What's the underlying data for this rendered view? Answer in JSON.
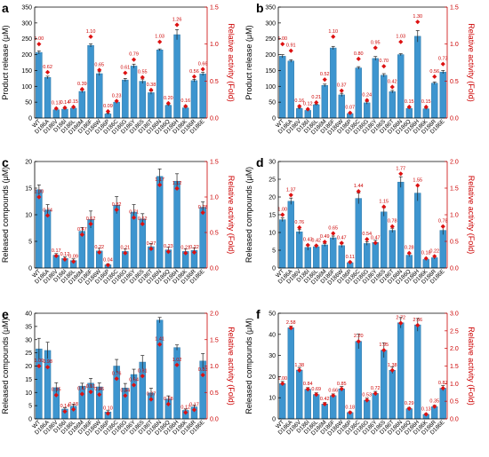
{
  "categories": [
    "WT",
    "D186A",
    "D186V",
    "D186I",
    "D186L",
    "D186M",
    "D186F",
    "D186W",
    "D186P",
    "D186C",
    "D186G",
    "D186Y",
    "D186S",
    "D186T",
    "D186N",
    "D186Q",
    "D186H",
    "D186K",
    "D186R",
    "D186E"
  ],
  "colors": {
    "bar": "#3d95cf",
    "activity": "#dd1111",
    "right_axis": "#cc0000"
  },
  "chart_data": [
    {
      "panel": "a",
      "type": "bar",
      "ylabel": "Product release (μM)",
      "ylim": [
        0,
        350
      ],
      "yticks": [
        0,
        50,
        100,
        150,
        200,
        250,
        300,
        350
      ],
      "y2label": "Relative activity (Fold)",
      "y2lim": [
        0,
        1.5
      ],
      "y2ticks": [
        0.0,
        0.5,
        1.0,
        1.5
      ],
      "values": [
        207,
        128,
        26,
        28,
        31,
        84,
        229,
        140,
        13,
        50,
        120,
        164,
        116,
        80,
        215,
        40,
        263,
        32,
        118,
        139
      ],
      "errors": [
        5,
        4,
        2,
        2,
        2,
        4,
        5,
        6,
        2,
        4,
        5,
        6,
        7,
        5,
        3,
        2,
        16,
        2,
        4,
        5
      ],
      "activity": [
        1.0,
        0.62,
        0.13,
        0.14,
        0.15,
        0.39,
        1.1,
        0.65,
        0.09,
        0.23,
        0.61,
        0.79,
        0.55,
        0.38,
        1.03,
        0.2,
        1.26,
        0.16,
        0.56,
        0.66
      ],
      "activity_labels": [
        "1.00",
        "0.62",
        "0.13",
        "0.14",
        "0.15",
        "0.39",
        "1.10",
        "0.65",
        "0.09",
        "0.23",
        "0.61",
        "0.79",
        "0.55",
        "0.38",
        "1.03",
        "0.20",
        "1.26",
        "0.16",
        "0.56",
        "0.66"
      ]
    },
    {
      "panel": "b",
      "type": "bar",
      "ylabel": "Product release (μM)",
      "ylim": [
        0,
        350
      ],
      "yticks": [
        0,
        50,
        100,
        150,
        200,
        250,
        300,
        350
      ],
      "y2label": "Relative activity (Fold)",
      "y2lim": [
        0,
        1.5
      ],
      "y2ticks": [
        0.0,
        0.5,
        1.0,
        1.5
      ],
      "values": [
        195,
        180,
        30,
        24,
        42,
        103,
        221,
        73,
        14,
        158,
        48,
        188,
        135,
        83,
        200,
        30,
        258,
        29,
        110,
        145
      ],
      "errors": [
        5,
        4,
        2,
        2,
        2,
        4,
        5,
        5,
        2,
        4,
        4,
        6,
        5,
        4,
        3,
        2,
        18,
        2,
        4,
        5
      ],
      "activity": [
        1.0,
        0.91,
        0.16,
        0.12,
        0.21,
        0.52,
        1.1,
        0.37,
        0.07,
        0.8,
        0.24,
        0.95,
        0.7,
        0.42,
        1.03,
        0.15,
        1.3,
        0.15,
        0.56,
        0.73
      ],
      "activity_labels": [
        "1.00",
        "0.91",
        "0.16",
        "0.12",
        "0.21",
        "0.52",
        "1.10",
        "0.37",
        "0.07",
        "0.80",
        "0.24",
        "0.95",
        "0.70",
        "0.42",
        "1.03",
        "0.15",
        "1.30",
        "0.15",
        "0.56",
        "0.73"
      ]
    },
    {
      "panel": "c",
      "type": "bar",
      "ylabel": "Released compounds (μM)",
      "ylim": [
        0,
        20
      ],
      "yticks": [
        0,
        5,
        10,
        15,
        20
      ],
      "y2label": "Relative activity (Fold)",
      "y2lim": [
        0,
        1.5
      ],
      "y2ticks": [
        0.0,
        0.5,
        1.0,
        1.5
      ],
      "values": [
        14.7,
        10.9,
        2.4,
        1.8,
        1.4,
        6.9,
        9.1,
        3.2,
        0.6,
        11.8,
        3.1,
        10.5,
        9.2,
        4.0,
        17.2,
        3.4,
        16.3,
        3.1,
        3.3,
        11.4
      ],
      "errors": [
        0.9,
        1.0,
        0.3,
        0.3,
        0.3,
        0.7,
        1.6,
        0.5,
        0.2,
        1.6,
        0.5,
        1.4,
        1.0,
        0.6,
        1.4,
        0.5,
        1.4,
        0.5,
        0.5,
        1.0
      ],
      "activity": [
        1.0,
        0.74,
        0.17,
        0.12,
        0.09,
        0.47,
        0.62,
        0.22,
        0.04,
        0.82,
        0.21,
        0.71,
        0.62,
        0.27,
        1.17,
        0.23,
        1.12,
        0.21,
        0.22,
        0.78
      ],
      "activity_labels": [
        "1.00",
        "0.74",
        "0.17",
        "0.12",
        "0.09",
        "0.47",
        "0.62",
        "0.22",
        "0.04",
        "0.82",
        "0.21",
        "0.71",
        "0.62",
        "0.27",
        "1.17",
        "0.23",
        "1.12",
        "0.21",
        "0.22",
        "0.78"
      ]
    },
    {
      "panel": "d",
      "type": "bar",
      "ylabel": "Released compounds (μM)",
      "ylim": [
        0,
        30
      ],
      "yticks": [
        0,
        5,
        10,
        15,
        20,
        25,
        30
      ],
      "y2label": "Relative activity (Fold)",
      "y2lim": [
        0,
        2.0
      ],
      "y2ticks": [
        0.0,
        0.5,
        1.0,
        1.5,
        2.0
      ],
      "values": [
        13.6,
        18.8,
        10.2,
        5.8,
        6.0,
        6.5,
        8.5,
        6.3,
        1.5,
        19.6,
        6.9,
        7.2,
        15.8,
        10.6,
        24.2,
        3.6,
        21.1,
        2.4,
        2.9,
        10.6
      ],
      "errors": [
        0.5,
        0.9,
        0.6,
        0.8,
        0.4,
        0.4,
        0.5,
        0.5,
        0.3,
        1.5,
        0.5,
        0.6,
        1.2,
        0.6,
        1.5,
        0.4,
        2.2,
        0.3,
        0.4,
        1.2
      ],
      "activity": [
        1.0,
        1.37,
        0.76,
        0.43,
        0.42,
        0.49,
        0.65,
        0.47,
        0.11,
        1.44,
        0.54,
        0.47,
        1.15,
        0.78,
        1.77,
        0.28,
        1.55,
        0.18,
        0.22,
        0.78
      ],
      "activity_labels": [
        "1.00",
        "1.37",
        "0.76",
        "0.43",
        "0.42",
        "0.49",
        "0.65",
        "0.47",
        "0.11",
        "1.44",
        "0.54",
        "0.47",
        "1.15",
        "0.78",
        "1.77",
        "0.28",
        "1.55",
        "0.18",
        "0.22",
        "0.78"
      ]
    },
    {
      "panel": "e",
      "type": "bar",
      "ylabel": "Released compounds (μM)",
      "ylim": [
        0,
        40
      ],
      "yticks": [
        0,
        5,
        10,
        15,
        20,
        25,
        30,
        35,
        40
      ],
      "y2label": "Relative activity (Fold)",
      "y2lim": [
        0,
        2.0
      ],
      "y2ticks": [
        0.0,
        0.5,
        1.0,
        1.5,
        2.0
      ],
      "values": [
        26.5,
        25.9,
        11.8,
        3.7,
        4.8,
        12.4,
        13.5,
        12.1,
        2.6,
        20.0,
        11.7,
        16.8,
        21.5,
        9.8,
        37.4,
        7.5,
        27.0,
        3.2,
        4.5,
        21.9
      ],
      "errors": [
        4.0,
        3.1,
        1.9,
        0.5,
        0.8,
        1.1,
        1.8,
        1.5,
        0.5,
        2.5,
        1.7,
        2.0,
        2.5,
        1.8,
        1.0,
        1.2,
        1.0,
        0.5,
        0.7,
        2.8
      ],
      "activity": [
        1.0,
        0.98,
        0.45,
        0.14,
        0.18,
        0.47,
        0.51,
        0.46,
        0.1,
        0.76,
        0.44,
        0.64,
        0.81,
        0.37,
        1.41,
        0.28,
        1.02,
        0.12,
        0.17,
        0.83
      ],
      "activity_labels": [
        "1.00",
        "0.98",
        "0.45",
        "0.14",
        "0.18",
        "0.47",
        "0.51",
        "0.46",
        "0.10",
        "0.76",
        "0.44",
        "0.64",
        "0.81",
        "0.37",
        "1.41",
        "0.28",
        "1.02",
        "0.12",
        "0.17",
        "0.83"
      ]
    },
    {
      "panel": "f",
      "type": "bar",
      "ylabel": "Released compounds (μM)",
      "ylim": [
        0,
        50
      ],
      "yticks": [
        0,
        10,
        20,
        30,
        40,
        50
      ],
      "y2label": "Relative activity (Fold)",
      "y2lim": [
        0,
        3.0
      ],
      "y2ticks": [
        0.0,
        0.5,
        1.0,
        1.5,
        2.0,
        2.5,
        3.0
      ],
      "values": [
        16.7,
        43.1,
        23.1,
        14.0,
        11.5,
        7.0,
        11.0,
        14.2,
        3.0,
        36.7,
        8.8,
        12.0,
        32.5,
        23.0,
        45.5,
        4.8,
        44.5,
        2.1,
        5.8,
        14.5
      ],
      "errors": [
        1.0,
        0.8,
        1.2,
        0.8,
        0.8,
        0.7,
        0.8,
        1.1,
        0.4,
        3.5,
        1.0,
        1.0,
        3.5,
        1.5,
        2.5,
        0.6,
        3.0,
        0.4,
        0.6,
        1.2
      ],
      "activity": [
        1.0,
        2.58,
        1.38,
        0.84,
        0.69,
        0.42,
        0.66,
        0.85,
        0.18,
        2.2,
        0.53,
        0.72,
        1.95,
        1.38,
        2.72,
        0.29,
        2.66,
        0.13,
        0.35,
        0.87
      ],
      "activity_labels": [
        "1.00",
        "2.58",
        "1.38",
        "0.84",
        "0.69",
        "0.42",
        "0.66",
        "0.85",
        "0.18",
        "2.20",
        "0.53",
        "0.72",
        "1.95",
        "1.38",
        "2.72",
        "0.29",
        "2.66",
        "0.13",
        "0.35",
        "0.87"
      ]
    }
  ]
}
